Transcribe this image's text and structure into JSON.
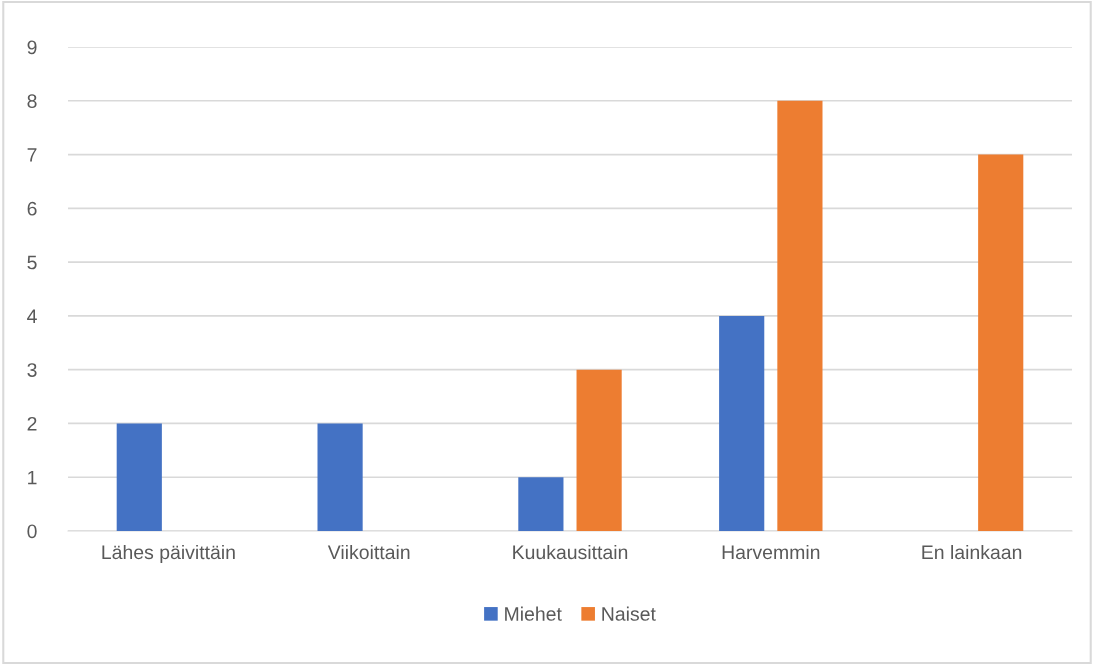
{
  "chart_data": {
    "type": "bar",
    "categories": [
      "Lähes päivittäin",
      "Viikoittain",
      "Kuukausittain",
      "Harvemmin",
      "En lainkaan"
    ],
    "series": [
      {
        "name": "Miehet",
        "color": "#4472c4",
        "values": [
          2,
          2,
          1,
          4,
          0
        ]
      },
      {
        "name": "Naiset",
        "color": "#ed7d31",
        "values": [
          0,
          0,
          3,
          8,
          7
        ]
      }
    ],
    "ylim": [
      0,
      9
    ],
    "yticks": [
      0,
      1,
      2,
      3,
      4,
      5,
      6,
      7,
      8,
      9
    ],
    "grid": "y",
    "legend": "bottom"
  }
}
